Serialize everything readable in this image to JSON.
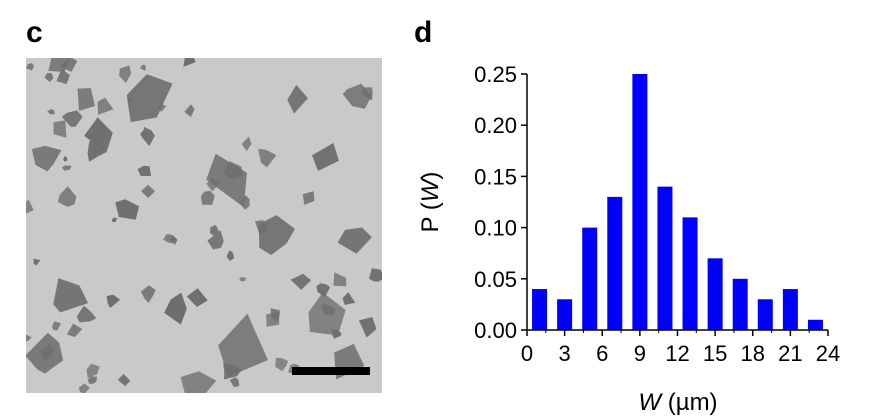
{
  "panels": {
    "left_letter": "c",
    "right_letter": "d"
  },
  "micrograph": {
    "flake_color": "#6e6e6e",
    "background_color": "#c9c9c9",
    "scale_bar_color": "#000000"
  },
  "chart_data": {
    "type": "bar",
    "title": "",
    "x": [
      1,
      3,
      5,
      7,
      9,
      11,
      13,
      15,
      17,
      19,
      21,
      23
    ],
    "values": [
      0.04,
      0.03,
      0.1,
      0.13,
      0.25,
      0.14,
      0.11,
      0.07,
      0.05,
      0.03,
      0.04,
      0.01
    ],
    "bar_color": "#0000ff",
    "xlim": [
      0,
      24
    ],
    "ylim": [
      0,
      0.25
    ],
    "xticks": [
      "0",
      "3",
      "6",
      "9",
      "12",
      "15",
      "18",
      "21",
      "24"
    ],
    "yticks": [
      "0.00",
      "0.05",
      "0.10",
      "0.15",
      "0.20",
      "0.25"
    ],
    "xlabel_italic": "W",
    "xlabel_unit": " (µm)",
    "ylabel_prefix": "P (",
    "ylabel_italic": "W",
    "ylabel_suffix": ")"
  }
}
